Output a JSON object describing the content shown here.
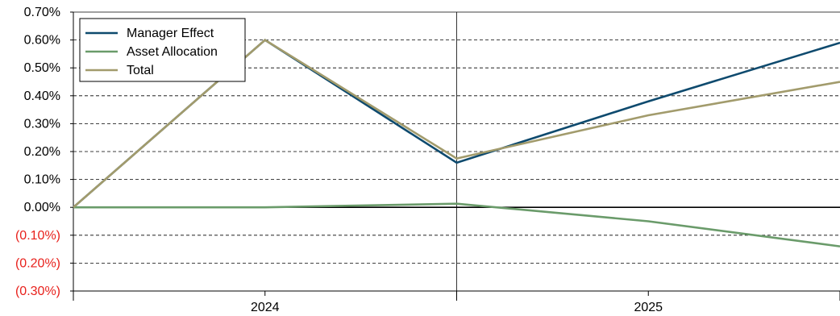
{
  "chart_data": {
    "type": "line",
    "title": "",
    "xlabel": "",
    "ylabel": "",
    "x": [
      0,
      1,
      2,
      3,
      4
    ],
    "x_tick_labels": [
      "2024",
      "2025"
    ],
    "x_tick_label_positions": [
      1,
      3
    ],
    "x_divider_positions": [
      0,
      2,
      4
    ],
    "ylim": [
      -0.3,
      0.7
    ],
    "y_ticks": [
      0.7,
      0.6,
      0.5,
      0.4,
      0.3,
      0.2,
      0.1,
      0.0,
      -0.1,
      -0.2,
      -0.3
    ],
    "y_tick_labels": [
      "0.70%",
      "0.60%",
      "0.50%",
      "0.40%",
      "0.30%",
      "0.20%",
      "0.10%",
      "0.00%",
      "(0.10%)",
      "(0.20%)",
      "(0.30%)"
    ],
    "negative_label_color": "#e8211c",
    "grid": "horizontal dashed",
    "legend_position": "top-left",
    "series": [
      {
        "name": "Manager Effect",
        "color": "#0e4a6e",
        "values": [
          0.0,
          0.6,
          0.16,
          0.38,
          0.59
        ]
      },
      {
        "name": "Asset Allocation",
        "color": "#6a9b6a",
        "values": [
          0.0,
          0.0,
          0.013,
          -0.05,
          -0.14
        ]
      },
      {
        "name": "Total",
        "color": "#a29b6c",
        "values": [
          0.0,
          0.6,
          0.175,
          0.33,
          0.45
        ]
      }
    ]
  }
}
